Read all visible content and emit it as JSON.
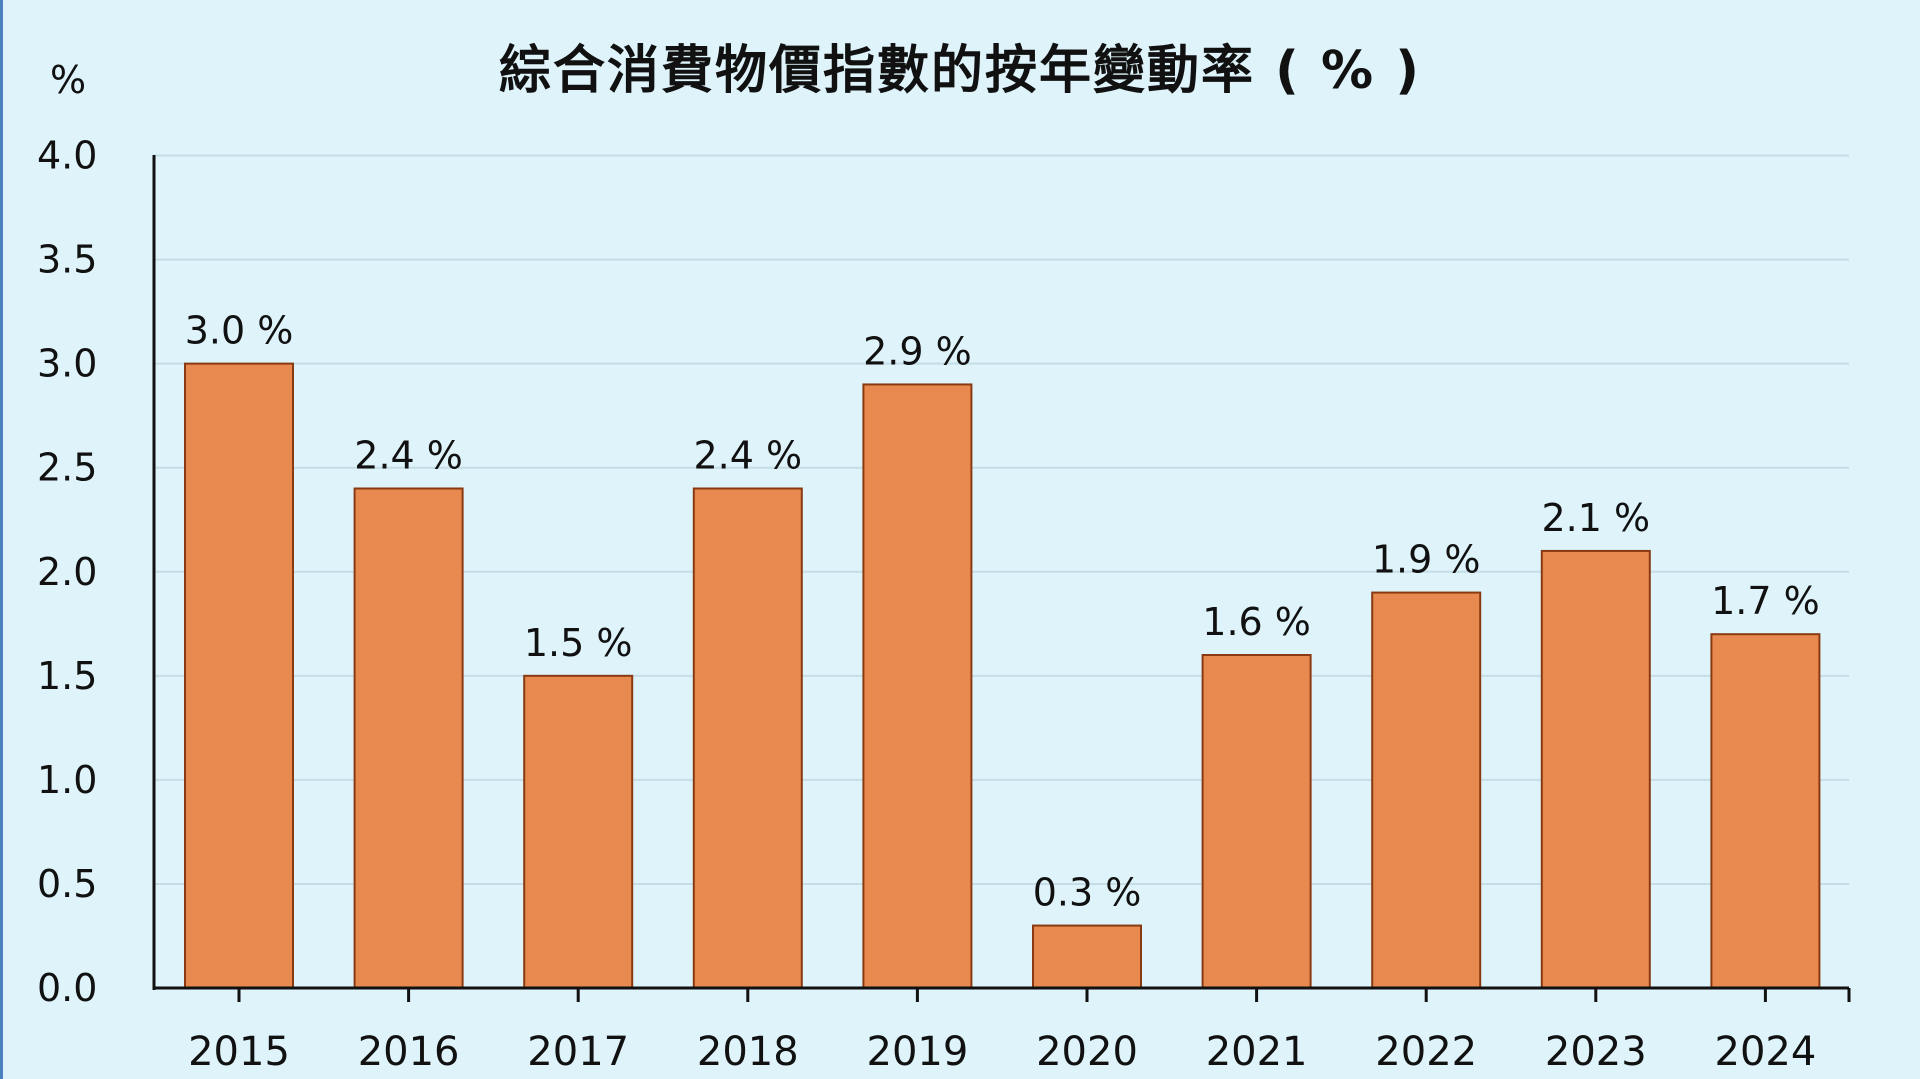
{
  "chart_data": {
    "type": "bar",
    "title": "綜合消費物價指數的按年變動率 ( % )",
    "ylabel": "%",
    "xlabel": "",
    "categories": [
      "2015",
      "2016",
      "2017",
      "2018",
      "2019",
      "2020",
      "2021",
      "2022",
      "2023",
      "2024"
    ],
    "values": [
      3.0,
      2.4,
      1.5,
      2.4,
      2.9,
      0.3,
      1.6,
      1.9,
      2.1,
      1.7
    ],
    "data_labels": [
      "3.0 %",
      "2.4 %",
      "1.5 %",
      "2.4 %",
      "2.9 %",
      "0.3 %",
      "1.6 %",
      "1.9 %",
      "2.1 %",
      "1.7 %"
    ],
    "yticks": [
      "0.0",
      "0.5",
      "1.0",
      "1.5",
      "2.0",
      "2.5",
      "3.0",
      "3.5",
      "4.0"
    ],
    "ylim": [
      0,
      4.0
    ],
    "grid": true,
    "legend": "none",
    "colors": {
      "bar": "#e8894f",
      "bar_border": "#8a3a12",
      "background": "#def3fa",
      "grid": "#c5dde6"
    }
  }
}
